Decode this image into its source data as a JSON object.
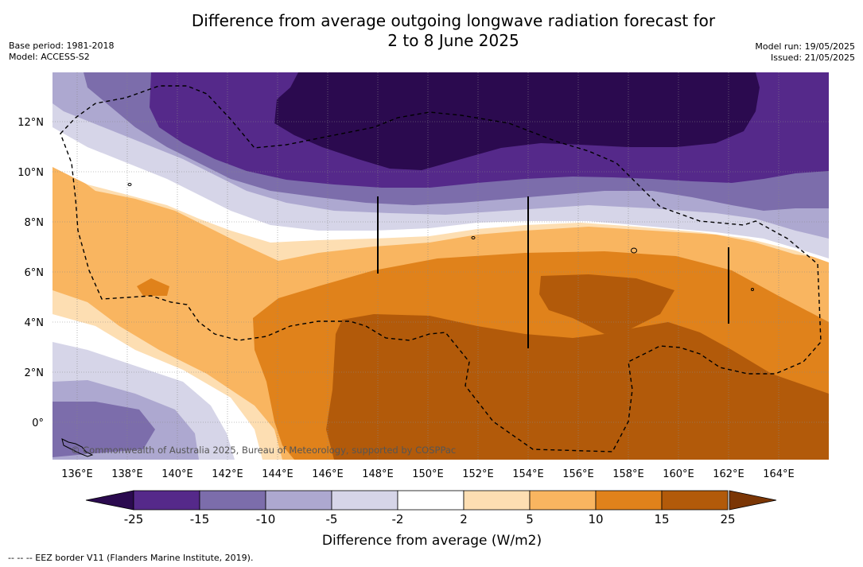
{
  "title_line1": "Difference from average outgoing longwave radiation forecast for",
  "title_line2": "2 to 8 June 2025",
  "base_period": "Base period: 1981-2018",
  "model": "Model: ACCESS-S2",
  "model_run": "Model run: 19/05/2025",
  "issued": "Issued: 21/05/2025",
  "x_ticks": [
    "136°E",
    "138°E",
    "140°E",
    "142°E",
    "144°E",
    "146°E",
    "148°E",
    "150°E",
    "152°E",
    "154°E",
    "156°E",
    "158°E",
    "160°E",
    "162°E",
    "164°E"
  ],
  "y_ticks": [
    "12°N",
    "10°N",
    "8°N",
    "6°N",
    "4°N",
    "2°N",
    "0°"
  ],
  "copyright": "© Commonwealth of Australia 2025, Bureau of Meteorology, supported by COSPPac",
  "colorbar": {
    "labels": [
      "-25",
      "-15",
      "-10",
      "-5",
      "-2",
      "2",
      "5",
      "10",
      "15",
      "25"
    ],
    "colors": [
      "#2b0a4f",
      "#55298a",
      "#7c6dab",
      "#ada8d0",
      "#d6d5e8",
      "#ffffff",
      "#fddeb2",
      "#f9b560",
      "#e0821b",
      "#b25a0a",
      "#7b3605"
    ],
    "title": "Difference from average (W/m2)"
  },
  "footnote": "--  --  -- EEZ border V11 (Flanders Marine Institute, 2019)."
}
